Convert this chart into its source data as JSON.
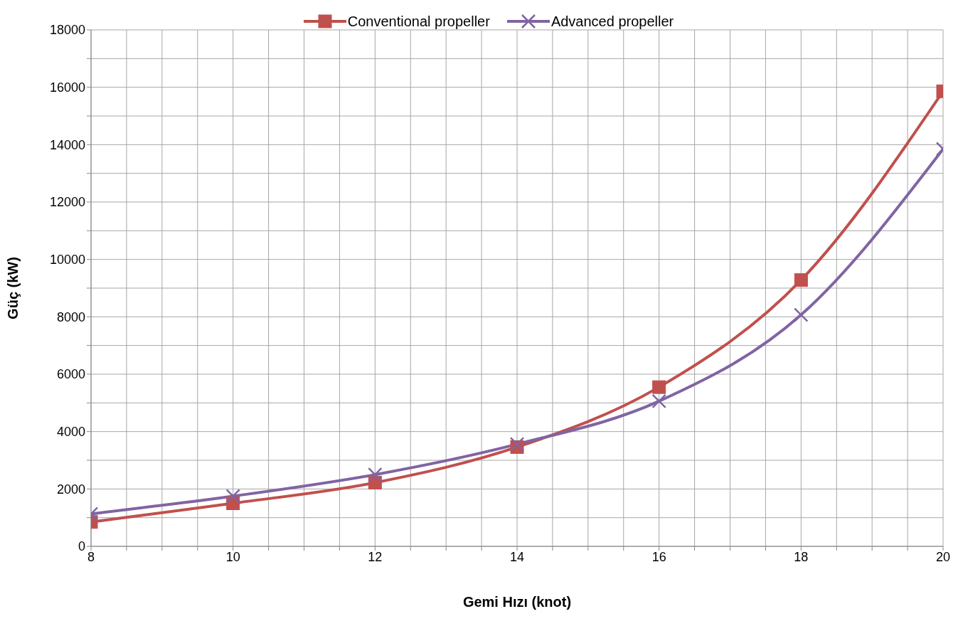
{
  "chart_data": {
    "type": "line",
    "xlabel": "Gemi Hızı (knot)",
    "ylabel": "Güç  (kW)",
    "x": [
      8,
      10,
      12,
      14,
      16,
      18,
      20
    ],
    "series": [
      {
        "name": "Conventional propeller",
        "color": "#c0504d",
        "marker": "square",
        "values": [
          850,
          1500,
          2220,
          3460,
          5550,
          9280,
          15860
        ]
      },
      {
        "name": "Advanced propeller",
        "color": "#8064a2",
        "marker": "cross",
        "values": [
          1130,
          1750,
          2500,
          3560,
          5060,
          8070,
          13850
        ]
      }
    ],
    "xlim": [
      8,
      20
    ],
    "xticks": [
      8,
      {
        "value": 8.5,
        "label": null
      },
      {
        "value": 9,
        "label": null
      },
      {
        "value": 9.5,
        "label": null
      },
      10,
      {
        "value": 10.5,
        "label": null
      },
      {
        "value": 11,
        "label": null
      },
      {
        "value": 11.5,
        "label": null
      },
      12,
      {
        "value": 12.5,
        "label": null
      },
      {
        "value": 13,
        "label": null
      },
      {
        "value": 13.5,
        "label": null
      },
      14,
      {
        "value": 14.5,
        "label": null
      },
      {
        "value": 15,
        "label": null
      },
      {
        "value": 15.5,
        "label": null
      },
      16,
      {
        "value": 16.5,
        "label": null
      },
      {
        "value": 17,
        "label": null
      },
      {
        "value": 17.5,
        "label": null
      },
      18,
      {
        "value": 18.5,
        "label": null
      },
      {
        "value": 19,
        "label": null
      },
      {
        "value": 19.5,
        "label": null
      },
      20
    ],
    "ylim": [
      0,
      18000
    ],
    "yticks": [
      0,
      {
        "value": 1000,
        "label": null
      },
      2000,
      {
        "value": 3000,
        "label": null
      },
      4000,
      {
        "value": 5000,
        "label": null
      },
      6000,
      {
        "value": 7000,
        "label": null
      },
      8000,
      {
        "value": 9000,
        "label": null
      },
      10000,
      {
        "value": 11000,
        "label": null
      },
      12000,
      {
        "value": 13000,
        "label": null
      },
      14000,
      {
        "value": 15000,
        "label": null
      },
      16000,
      {
        "value": 17000,
        "label": null
      },
      18000
    ],
    "grid": true,
    "legend": "top",
    "line_style": "solid"
  }
}
